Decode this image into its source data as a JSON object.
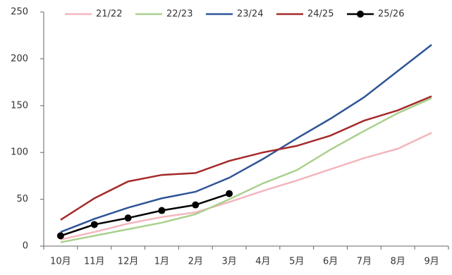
{
  "chart_data": {
    "type": "line",
    "categories": [
      "10月",
      "11月",
      "12月",
      "1月",
      "2月",
      "3月",
      "4月",
      "5月",
      "6月",
      "7月",
      "8月",
      "9月"
    ],
    "series": [
      {
        "name": "21/22",
        "color": "#f4b6bd",
        "values": [
          7,
          15,
          24,
          31,
          36,
          47,
          59,
          70,
          82,
          94,
          104,
          121
        ]
      },
      {
        "name": "22/23",
        "color": "#a9d18e",
        "values": [
          4,
          11,
          18,
          25,
          34,
          50,
          67,
          81,
          103,
          123,
          142,
          158
        ]
      },
      {
        "name": "23/24",
        "color": "#2f5597",
        "values": [
          15,
          29,
          41,
          51,
          58,
          73,
          93,
          115,
          136,
          159,
          187,
          215
        ]
      },
      {
        "name": "24/25",
        "color": "#a52a2a",
        "values": [
          28,
          51,
          69,
          76,
          78,
          91,
          100,
          107,
          118,
          134,
          145,
          160
        ]
      },
      {
        "name": "25/26",
        "color": "#000000",
        "marker": true,
        "values": [
          11,
          23,
          30,
          38,
          44,
          56,
          null,
          null,
          null,
          null,
          null,
          null
        ]
      }
    ],
    "ylim": [
      0,
      250
    ],
    "yticks": [
      0,
      50,
      100,
      150,
      200,
      250
    ],
    "grid": false,
    "legend": "top"
  }
}
